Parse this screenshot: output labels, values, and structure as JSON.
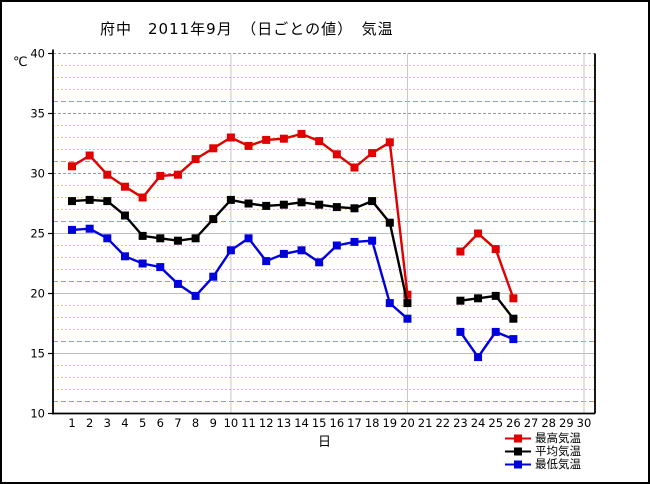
{
  "title": "府中　2011年9月　（日ごとの値）　気温",
  "chart_data": {
    "type": "line",
    "xlabel": "日",
    "ylabel": "℃",
    "ylim": [
      10,
      40
    ],
    "yticks": [
      10,
      15,
      20,
      25,
      30,
      35,
      40
    ],
    "days": [
      1,
      2,
      3,
      4,
      5,
      6,
      7,
      8,
      9,
      10,
      11,
      12,
      13,
      14,
      15,
      16,
      17,
      18,
      19,
      20,
      21,
      22,
      23,
      24,
      25,
      26,
      27,
      28,
      29,
      30
    ],
    "missing_days": [
      21,
      22,
      27,
      28,
      29,
      30
    ],
    "grid": {
      "minor_step": 1,
      "major_step": 5,
      "vertical_gridline_days": [
        10,
        20,
        30
      ],
      "minor_color": "#efb54a",
      "minor_alt_color": "#d69245",
      "major_dashed_color": "#9a9a9a",
      "major_solid_color": "#bdbdbd",
      "vertical_color": "#c6c6c6"
    },
    "legend_position": "bottom-right",
    "series": [
      {
        "name": "最高気温",
        "color": "#e00000",
        "values": [
          30.6,
          31.5,
          29.9,
          28.9,
          28.0,
          29.8,
          29.9,
          31.2,
          32.1,
          33.0,
          32.3,
          32.8,
          32.9,
          33.3,
          32.7,
          31.6,
          30.5,
          31.7,
          32.6,
          19.9,
          null,
          null,
          23.5,
          25.0,
          23.7,
          19.6,
          null,
          null,
          null,
          null
        ]
      },
      {
        "name": "平均気温",
        "color": "#000000",
        "values": [
          27.7,
          27.8,
          27.7,
          26.5,
          24.8,
          24.6,
          24.4,
          24.6,
          26.2,
          27.8,
          27.5,
          27.3,
          27.4,
          27.6,
          27.4,
          27.2,
          27.1,
          27.7,
          25.9,
          19.2,
          null,
          null,
          19.4,
          19.6,
          19.8,
          17.9,
          null,
          null,
          null,
          null
        ]
      },
      {
        "name": "最低気温",
        "color": "#0000dd",
        "values": [
          25.3,
          25.4,
          24.6,
          23.1,
          22.5,
          22.2,
          20.8,
          19.8,
          21.4,
          23.6,
          24.6,
          22.7,
          23.3,
          23.6,
          22.6,
          24.0,
          24.3,
          24.4,
          19.2,
          17.9,
          null,
          null,
          16.8,
          14.7,
          16.8,
          16.2,
          null,
          null,
          null,
          null
        ]
      }
    ]
  }
}
